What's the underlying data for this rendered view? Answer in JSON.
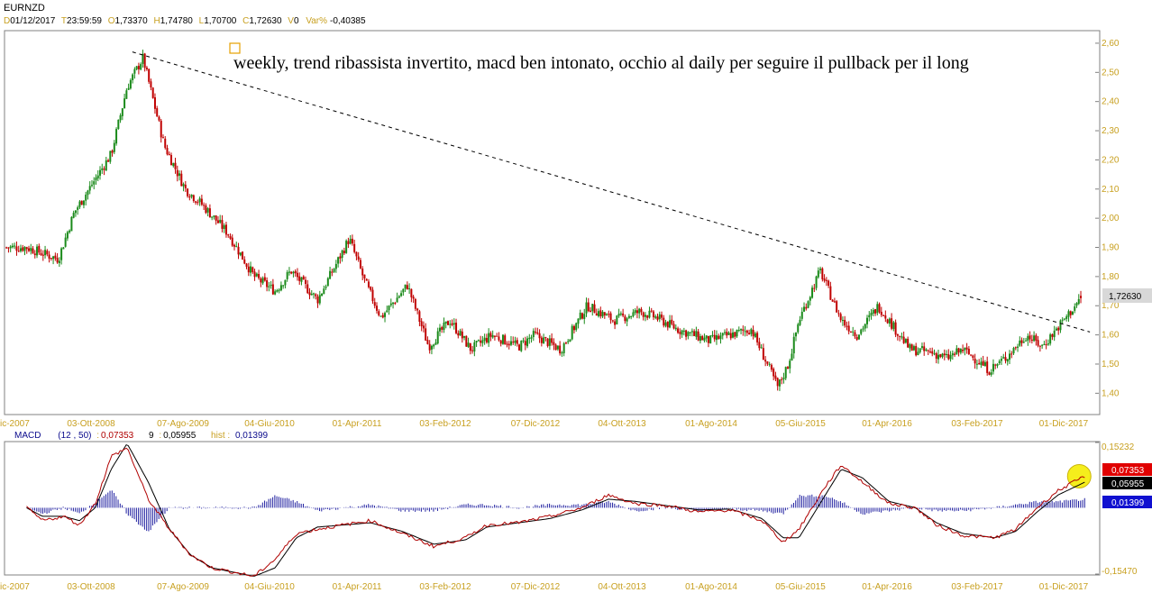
{
  "header": {
    "symbol": "EURNZD",
    "d_key": "D",
    "date": "01/12/2017",
    "t_key": "T",
    "time": "23:59:59",
    "o_key": "O",
    "open": "1,73370",
    "h_key": "H",
    "high": "1,74780",
    "l_key": "L",
    "low": "1,70700",
    "c_key": "C",
    "close": "1,72630",
    "v_key": "V",
    "volume": "0",
    "var_key": "Var%",
    "var": "-0,40385"
  },
  "annotation": "weekly, trend ribassista invertito, macd ben intonato, occhio al daily per seguire il pullback per il long",
  "price_badge": "1,72630",
  "macd_header": {
    "name": "MACD",
    "params": "(12 , 50)",
    "macd_value": "0,07353",
    "signal_period": "9",
    "signal_value": "0,05955",
    "hist_label": "hist :",
    "hist_value": "0,01399"
  },
  "macd_badges": {
    "macd": "0,07353",
    "signal": "0,05955",
    "hist": "0,01399"
  },
  "colors": {
    "up": "#1a8a1a",
    "down": "#c00000",
    "axis_label": "#c8a020",
    "macd_line": "#b00000",
    "signal_line": "#000000",
    "hist_bar": "#2020a0",
    "highlight": "#f5ee10"
  },
  "chart_data": [
    {
      "type": "candlestick",
      "title": "EURNZD",
      "timeframe": "weekly",
      "x_tick_labels": [
        "ic-2007",
        "03-Ott-2008",
        "07-Ago-2009",
        "04-Giu-2010",
        "01-Apr-2011",
        "03-Feb-2012",
        "07-Dic-2012",
        "04-Ott-2013",
        "01-Ago-2014",
        "05-Giu-2015",
        "01-Apr-2016",
        "03-Feb-2017",
        "01-Dic-2017"
      ],
      "y_tick_labels": [
        "2,60",
        "2,50",
        "2,40",
        "2,30",
        "2,20",
        "2,10",
        "2,00",
        "1,90",
        "1,80",
        "1,70",
        "1,60",
        "1,50",
        "1,40"
      ],
      "y_ticks": [
        2.6,
        2.5,
        2.4,
        2.3,
        2.2,
        2.1,
        2.0,
        1.9,
        1.8,
        1.7,
        1.6,
        1.5,
        1.4
      ],
      "ylim": [
        1.33,
        2.64
      ],
      "x": [
        2007.95,
        2008.25,
        2008.4,
        2008.75,
        2008.9,
        2009.05,
        2009.25,
        2009.45,
        2009.6,
        2009.85,
        2010.1,
        2010.3,
        2010.45,
        2010.7,
        2011.0,
        2011.15,
        2011.3,
        2011.55,
        2011.75,
        2011.95,
        2012.15,
        2012.35,
        2012.6,
        2012.75,
        2013.0,
        2013.25,
        2013.5,
        2013.75,
        2013.9,
        2014.1,
        2014.4,
        2014.6,
        2014.8,
        2015.05,
        2015.15,
        2015.25,
        2015.45,
        2015.65,
        2015.8,
        2016.0,
        2016.3,
        2016.5,
        2016.65,
        2016.8,
        2017.05,
        2017.2,
        2017.4,
        2017.55,
        2017.75,
        2017.92
      ],
      "close": [
        1.9,
        1.86,
        2.02,
        2.22,
        2.45,
        2.55,
        2.25,
        2.1,
        2.05,
        1.95,
        1.8,
        1.75,
        1.82,
        1.72,
        1.93,
        1.78,
        1.66,
        1.77,
        1.56,
        1.65,
        1.55,
        1.6,
        1.56,
        1.6,
        1.55,
        1.7,
        1.65,
        1.68,
        1.66,
        1.62,
        1.58,
        1.6,
        1.62,
        1.42,
        1.5,
        1.65,
        1.82,
        1.65,
        1.6,
        1.7,
        1.55,
        1.54,
        1.52,
        1.55,
        1.48,
        1.52,
        1.6,
        1.56,
        1.65,
        1.7263
      ],
      "trendline": {
        "style": "dashed",
        "from": [
          2008.95,
          2.57
        ],
        "to": [
          2018.0,
          1.61
        ]
      }
    },
    {
      "type": "macd",
      "title": "MACD",
      "params": [
        12,
        50,
        9
      ],
      "y_tick_labels": [
        "0,15232",
        "-0,15470"
      ],
      "ylim": [
        -0.1547,
        0.15232
      ],
      "x": [
        2007.95,
        2008.1,
        2008.3,
        2008.45,
        2008.6,
        2008.75,
        2008.9,
        2009.1,
        2009.3,
        2009.5,
        2009.7,
        2009.9,
        2010.1,
        2010.3,
        2010.5,
        2010.7,
        2010.95,
        2011.2,
        2011.5,
        2011.8,
        2012.1,
        2012.3,
        2012.6,
        2012.9,
        2013.2,
        2013.45,
        2013.7,
        2014.0,
        2014.3,
        2014.6,
        2014.9,
        2015.1,
        2015.25,
        2015.5,
        2015.65,
        2015.85,
        2016.1,
        2016.35,
        2016.55,
        2016.8,
        2017.1,
        2017.3,
        2017.5,
        2017.7,
        2017.95
      ],
      "macd": [
        0.0,
        -0.03,
        -0.02,
        -0.04,
        0.01,
        0.12,
        0.14,
        0.02,
        -0.05,
        -0.11,
        -0.14,
        -0.15,
        -0.16,
        -0.12,
        -0.06,
        -0.05,
        -0.04,
        -0.03,
        -0.06,
        -0.09,
        -0.07,
        -0.04,
        -0.035,
        -0.02,
        0.0,
        0.03,
        0.01,
        0.005,
        -0.01,
        -0.005,
        -0.03,
        -0.08,
        -0.05,
        0.05,
        0.1,
        0.06,
        0.01,
        0.0,
        -0.04,
        -0.065,
        -0.07,
        -0.05,
        0.0,
        0.04,
        0.07353
      ],
      "signal": [
        0.0,
        -0.02,
        -0.02,
        -0.03,
        0.0,
        0.09,
        0.15,
        0.06,
        -0.05,
        -0.11,
        -0.14,
        -0.15,
        -0.16,
        -0.14,
        -0.07,
        -0.045,
        -0.04,
        -0.035,
        -0.055,
        -0.085,
        -0.075,
        -0.045,
        -0.035,
        -0.025,
        -0.005,
        0.02,
        0.015,
        0.005,
        -0.005,
        -0.003,
        -0.025,
        -0.07,
        -0.07,
        0.03,
        0.09,
        0.07,
        0.015,
        0.0,
        -0.035,
        -0.06,
        -0.07,
        -0.055,
        -0.01,
        0.03,
        0.05955
      ],
      "highlight": "last-value"
    }
  ]
}
